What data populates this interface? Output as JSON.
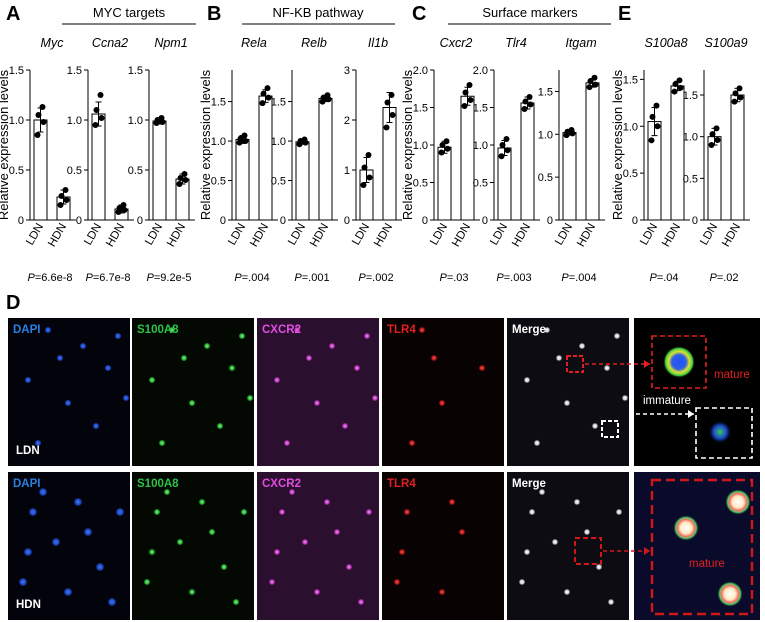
{
  "panels": [
    {
      "letter": "A",
      "header": "MYC targets",
      "charts": [
        {
          "gene": "Myc",
          "ylim": [
            0,
            1.5
          ],
          "ticks": [
            "0",
            "0.5",
            "1.0",
            "1.5"
          ],
          "tickvals": [
            0,
            0.5,
            1.0,
            1.5
          ],
          "categories": [
            "LDN",
            "HDN"
          ],
          "means": [
            1.0,
            0.23
          ],
          "sd": [
            0.12,
            0.07
          ],
          "points": [
            [
              0.85,
              0.98,
              1.05,
              1.13
            ],
            [
              0.15,
              0.2,
              0.24,
              0.3
            ]
          ],
          "p": "P=6.6e-8"
        },
        {
          "gene": "Ccna2",
          "ylim": [
            0,
            1.5
          ],
          "ticks": [
            "0",
            "0.5",
            "1.0",
            "1.5"
          ],
          "tickvals": [
            0,
            0.5,
            1.0,
            1.5
          ],
          "categories": [
            "LDN",
            "HDN"
          ],
          "means": [
            1.06,
            0.11
          ],
          "sd": [
            0.12,
            0.04
          ],
          "points": [
            [
              0.95,
              1.02,
              1.1,
              1.25
            ],
            [
              0.08,
              0.1,
              0.12,
              0.15
            ]
          ],
          "p": "P=6.7e-8"
        },
        {
          "gene": "Npm1",
          "ylim": [
            0,
            1.5
          ],
          "ticks": [
            "0",
            "0.5",
            "1.0",
            "1.5"
          ],
          "tickvals": [
            0,
            0.5,
            1.0,
            1.5
          ],
          "categories": [
            "LDN",
            "HDN"
          ],
          "means": [
            0.99,
            0.41
          ],
          "sd": [
            0.03,
            0.05
          ],
          "points": [
            [
              0.97,
              0.98,
              1.0,
              1.02
            ],
            [
              0.36,
              0.4,
              0.42,
              0.46
            ]
          ],
          "p": "P=9.2e-5"
        }
      ]
    },
    {
      "letter": "B",
      "header": "NF-KB pathway",
      "charts": [
        {
          "gene": "Rela",
          "ylim": [
            0,
            1.9
          ],
          "ticks": [
            "0",
            "0.5",
            "1.0",
            "1.5"
          ],
          "tickvals": [
            0,
            0.5,
            1.0,
            1.5
          ],
          "categories": [
            "LDN",
            "HDN"
          ],
          "means": [
            1.02,
            1.57
          ],
          "sd": [
            0.05,
            0.08
          ],
          "points": [
            [
              0.98,
              1.0,
              1.03,
              1.07
            ],
            [
              1.48,
              1.55,
              1.6,
              1.67
            ]
          ],
          "p": "P=.004"
        },
        {
          "gene": "Relb",
          "ylim": [
            0,
            1.9
          ],
          "ticks": [
            "0",
            "0.5",
            "1.0",
            "1.5"
          ],
          "tickvals": [
            0,
            0.5,
            1.0,
            1.5
          ],
          "categories": [
            "LDN",
            "HDN"
          ],
          "means": [
            0.99,
            1.54
          ],
          "sd": [
            0.03,
            0.04
          ],
          "points": [
            [
              0.96,
              0.98,
              1.0,
              1.02
            ],
            [
              1.5,
              1.53,
              1.55,
              1.58
            ]
          ],
          "p": "P=.001"
        },
        {
          "gene": "Il1b",
          "ylim": [
            0,
            3.0
          ],
          "ticks": [
            "0",
            "1",
            "2",
            "3"
          ],
          "tickvals": [
            0,
            1,
            2,
            3
          ],
          "categories": [
            "LDN",
            "HDN"
          ],
          "means": [
            1.0,
            2.25
          ],
          "sd": [
            0.25,
            0.3
          ],
          "points": [
            [
              0.7,
              0.85,
              1.05,
              1.3
            ],
            [
              1.85,
              2.1,
              2.35,
              2.5
            ]
          ],
          "p": "P=.002"
        }
      ]
    },
    {
      "letter": "C",
      "header": "Surface markers",
      "charts": [
        {
          "gene": "Cxcr2",
          "ylim": [
            0,
            2.0
          ],
          "ticks": [
            "0",
            "0.5",
            "1.0",
            "1.5",
            "2.0"
          ],
          "tickvals": [
            0,
            0.5,
            1.0,
            1.5,
            2.0
          ],
          "categories": [
            "LDN",
            "HDN"
          ],
          "means": [
            0.97,
            1.65
          ],
          "sd": [
            0.08,
            0.12
          ],
          "points": [
            [
              0.9,
              0.95,
              1.0,
              1.05
            ],
            [
              1.52,
              1.6,
              1.7,
              1.8
            ]
          ],
          "p": "P=.03"
        },
        {
          "gene": "Tlr4",
          "ylim": [
            0,
            2.0
          ],
          "ticks": [
            "0",
            "0.5",
            "1.0",
            "1.5",
            "2.0"
          ],
          "tickvals": [
            0,
            0.5,
            1.0,
            1.5,
            2.0
          ],
          "categories": [
            "LDN",
            "HDN"
          ],
          "means": [
            0.96,
            1.56
          ],
          "sd": [
            0.1,
            0.08
          ],
          "points": [
            [
              0.85,
              0.93,
              1.0,
              1.08
            ],
            [
              1.48,
              1.54,
              1.58,
              1.64
            ]
          ],
          "p": "P=.003"
        },
        {
          "gene": "Itgam",
          "ylim": [
            0,
            1.75
          ],
          "ticks": [
            "0",
            "0.5",
            "1.0",
            "1.5"
          ],
          "tickvals": [
            0,
            0.5,
            1.0,
            1.5
          ],
          "categories": [
            "LDN",
            "HDN"
          ],
          "means": [
            1.02,
            1.6
          ],
          "sd": [
            0.03,
            0.05
          ],
          "points": [
            [
              0.99,
              1.01,
              1.03,
              1.05
            ],
            [
              1.55,
              1.58,
              1.62,
              1.66
            ]
          ],
          "p": "P=.004"
        }
      ]
    },
    {
      "letter": "E",
      "header": "",
      "charts": [
        {
          "gene": "S100a8",
          "ylim": [
            0,
            1.6
          ],
          "ticks": [
            "0",
            "0.5",
            "1.0",
            "1.5"
          ],
          "tickvals": [
            0,
            0.5,
            1.0,
            1.5
          ],
          "categories": [
            "LDN",
            "HDN"
          ],
          "means": [
            1.05,
            1.43
          ],
          "sd": [
            0.15,
            0.05
          ],
          "points": [
            [
              0.85,
              1.0,
              1.1,
              1.22
            ],
            [
              1.37,
              1.41,
              1.45,
              1.49
            ]
          ],
          "p": "P=.04"
        },
        {
          "gene": "S100a9",
          "ylim": [
            0,
            1.8
          ],
          "ticks": [
            "0",
            "0.5",
            "1.0",
            "1.5"
          ],
          "tickvals": [
            0,
            0.5,
            1.0,
            1.5
          ],
          "categories": [
            "LDN",
            "HDN"
          ],
          "means": [
            1.0,
            1.5
          ],
          "sd": [
            0.1,
            0.08
          ],
          "points": [
            [
              0.9,
              0.96,
              1.03,
              1.1
            ],
            [
              1.42,
              1.47,
              1.52,
              1.58
            ]
          ],
          "p": "P=.02"
        }
      ]
    }
  ],
  "ylabel": "Relative expression levels",
  "panel_d": {
    "letter": "D",
    "channels": [
      "DAPI",
      "S100A8",
      "CXCR2",
      "TLR4",
      "Merge"
    ],
    "channel_colors": [
      "#2a7fe0",
      "#2fc24a",
      "#e24de0",
      "#e02020",
      "#ffffff"
    ],
    "rows": [
      "LDN",
      "HDN"
    ],
    "annotations": {
      "mature": "mature",
      "immature": "immature"
    }
  }
}
